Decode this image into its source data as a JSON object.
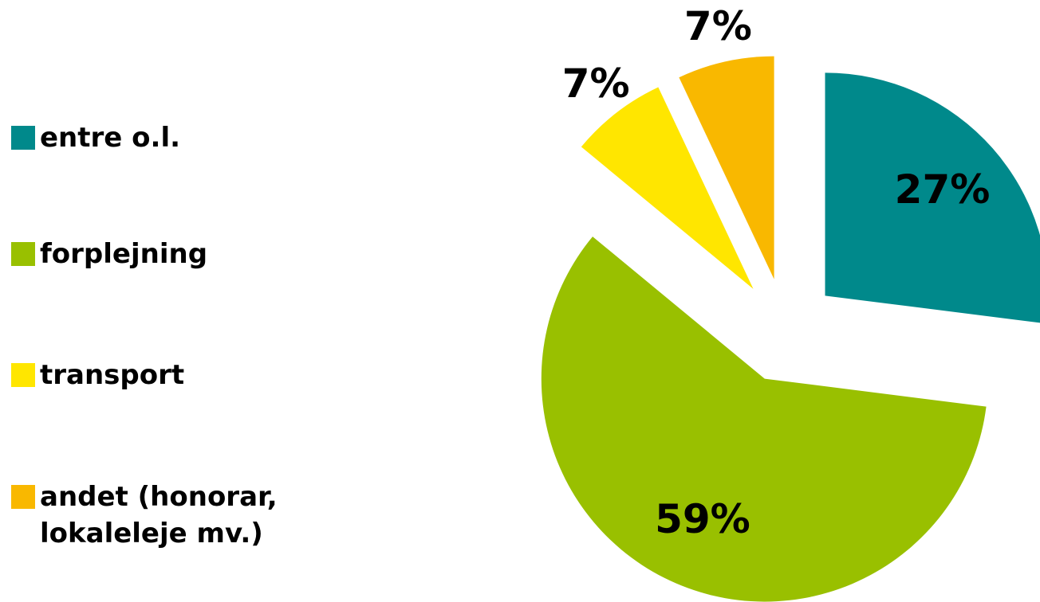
{
  "chart_data": {
    "type": "pie",
    "categories": [
      "entre o.l.",
      "forplejning",
      "transport",
      "andet (honorar, lokaleleje mv.)"
    ],
    "values": [
      27,
      59,
      7,
      7
    ],
    "value_labels": [
      "27%",
      "59%",
      "7%",
      "7%"
    ],
    "colors": [
      "#00898b",
      "#99c000",
      "#ffe600",
      "#f9b800"
    ],
    "legend": "left"
  }
}
